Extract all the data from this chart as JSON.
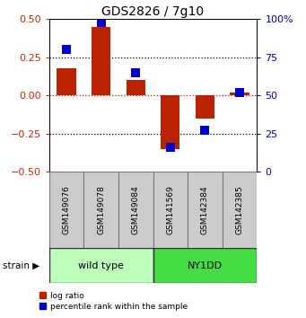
{
  "title": "GDS2826 / 7g10",
  "samples": [
    "GSM149076",
    "GSM149078",
    "GSM149084",
    "GSM141569",
    "GSM142384",
    "GSM142385"
  ],
  "log_ratio": [
    0.18,
    0.45,
    0.1,
    -0.35,
    -0.15,
    0.02
  ],
  "percentile_rank": [
    80,
    98,
    65,
    16,
    27,
    52
  ],
  "ylim_left": [
    -0.5,
    0.5
  ],
  "ylim_right": [
    0,
    100
  ],
  "yticks_left": [
    -0.5,
    -0.25,
    0,
    0.25,
    0.5
  ],
  "yticks_right": [
    0,
    25,
    50,
    75,
    100
  ],
  "bar_color_red": "#bb2200",
  "bar_color_blue": "#0000cc",
  "wildtype_color": "#bbffbb",
  "ny1dd_color": "#44dd44",
  "tick_color_left": "#cc2200",
  "tick_color_right": "#0000cc",
  "bar_width": 0.55,
  "blue_square_size": 55
}
